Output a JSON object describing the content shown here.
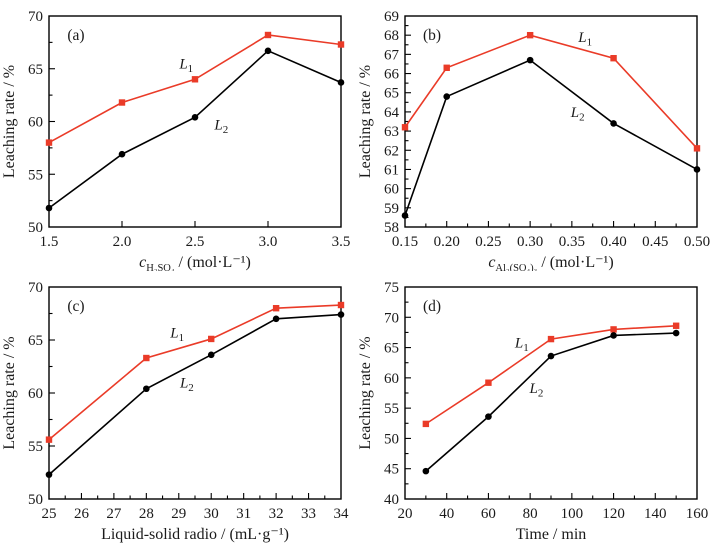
{
  "figure": {
    "background": "#ffffff",
    "frame_color": "#000000",
    "ylabel": "Leaching rate / %"
  },
  "chart_data": [
    {
      "panel_label": "(a)",
      "type": "line",
      "xlabel": {
        "italic": "c",
        "sub": "H₂SO₄",
        "rest": " / (mol·L⁻¹)"
      },
      "ylabel": "Leaching rate / %",
      "xlim": [
        1.5,
        3.5
      ],
      "ylim": [
        50,
        70
      ],
      "xticks": [
        1.5,
        2.0,
        2.5,
        3.0,
        3.5
      ],
      "xtick_labels": [
        "1.5",
        "2.0",
        "2.5",
        "3.0",
        "3.5"
      ],
      "yticks": [
        50,
        55,
        60,
        65,
        70
      ],
      "ytick_labels": [
        "50",
        "55",
        "60",
        "65",
        "70"
      ],
      "x_minor_step": 0,
      "y_minor_step": 2.5,
      "x": [
        1.5,
        2.0,
        2.5,
        3.0,
        3.5
      ],
      "grid": false,
      "legend_position": "inline-labels",
      "series": [
        {
          "name": "L",
          "subscript": "1",
          "marker": "square",
          "color": "#ea3b28",
          "values": [
            58.0,
            61.8,
            64.0,
            68.2,
            67.3
          ],
          "label_x": 2.44,
          "label_y": 65.5
        },
        {
          "name": "L",
          "subscript": "2",
          "marker": "circle",
          "color": "#000000",
          "values": [
            51.8,
            56.9,
            60.4,
            66.7,
            63.7
          ],
          "label_x": 2.68,
          "label_y": 59.7
        }
      ]
    },
    {
      "panel_label": "(b)",
      "type": "line",
      "xlabel": {
        "italic": "c",
        "sub": "Al₂(SO₄)₃",
        "rest": " / (mol·L⁻¹)"
      },
      "ylabel": "Leaching rate / %",
      "xlim": [
        0.15,
        0.5
      ],
      "ylim": [
        58,
        69
      ],
      "xticks": [
        0.15,
        0.2,
        0.25,
        0.3,
        0.35,
        0.4,
        0.45,
        0.5
      ],
      "xtick_labels": [
        "0.15",
        "0.20",
        "0.25",
        "0.30",
        "0.35",
        "0.40",
        "0.45",
        "0.50"
      ],
      "yticks": [
        58,
        59,
        60,
        61,
        62,
        63,
        64,
        65,
        66,
        67,
        68,
        69
      ],
      "ytick_labels": [
        "58",
        "59",
        "60",
        "61",
        "62",
        "63",
        "64",
        "65",
        "66",
        "67",
        "68",
        "69"
      ],
      "x_minor_step": 0.025,
      "y_minor_step": 0.5,
      "x": [
        0.15,
        0.2,
        0.3,
        0.4,
        0.5
      ],
      "grid": false,
      "legend_position": "inline-labels",
      "series": [
        {
          "name": "L",
          "subscript": "1",
          "marker": "square",
          "color": "#ea3b28",
          "values": [
            63.2,
            66.3,
            68.0,
            66.8,
            62.1
          ],
          "label_x": 0.366,
          "label_y": 67.9
        },
        {
          "name": "L",
          "subscript": "2",
          "marker": "circle",
          "color": "#000000",
          "values": [
            58.6,
            64.8,
            66.7,
            63.4,
            61.0
          ],
          "label_x": 0.357,
          "label_y": 64.0
        }
      ]
    },
    {
      "panel_label": "(c)",
      "type": "line",
      "xlabel": {
        "italic": "",
        "sub": "",
        "rest": "Liquid-solid radio / (mL·g⁻¹)"
      },
      "ylabel": "Leaching rate / %",
      "xlim": [
        25,
        34
      ],
      "ylim": [
        50,
        70
      ],
      "xticks": [
        25,
        26,
        27,
        28,
        29,
        30,
        31,
        32,
        33,
        34
      ],
      "xtick_labels": [
        "25",
        "26",
        "27",
        "28",
        "29",
        "30",
        "31",
        "32",
        "33",
        "34"
      ],
      "yticks": [
        50,
        55,
        60,
        65,
        70
      ],
      "ytick_labels": [
        "50",
        "55",
        "60",
        "65",
        "70"
      ],
      "x_minor_step": 0.5,
      "y_minor_step": 2.5,
      "x": [
        25,
        28,
        30,
        32,
        34
      ],
      "grid": false,
      "legend_position": "inline-labels",
      "series": [
        {
          "name": "L",
          "subscript": "1",
          "marker": "square",
          "color": "#ea3b28",
          "values": [
            55.6,
            63.3,
            65.1,
            68.0,
            68.3
          ],
          "label_x": 28.95,
          "label_y": 65.7
        },
        {
          "name": "L",
          "subscript": "2",
          "marker": "circle",
          "color": "#000000",
          "values": [
            52.3,
            60.4,
            63.6,
            67.0,
            67.4
          ],
          "label_x": 29.25,
          "label_y": 61.0
        }
      ]
    },
    {
      "panel_label": "(d)",
      "type": "line",
      "xlabel": {
        "italic": "",
        "sub": "",
        "rest": "Time / min"
      },
      "ylabel": "Leaching rate / %",
      "xlim": [
        20,
        160
      ],
      "ylim": [
        40,
        75
      ],
      "xticks": [
        20,
        40,
        60,
        80,
        100,
        120,
        140,
        160
      ],
      "xtick_labels": [
        "20",
        "40",
        "60",
        "80",
        "100",
        "120",
        "140",
        "160"
      ],
      "yticks": [
        40,
        45,
        50,
        55,
        60,
        65,
        70,
        75
      ],
      "ytick_labels": [
        "40",
        "45",
        "50",
        "55",
        "60",
        "65",
        "70",
        "75"
      ],
      "x_minor_step": 10,
      "y_minor_step": 2.5,
      "x": [
        30,
        60,
        90,
        120,
        150
      ],
      "grid": false,
      "legend_position": "inline-labels",
      "series": [
        {
          "name": "L",
          "subscript": "1",
          "marker": "square",
          "color": "#ea3b28",
          "values": [
            52.4,
            59.2,
            66.4,
            68.0,
            68.6
          ],
          "label_x": 76,
          "label_y": 65.8
        },
        {
          "name": "L",
          "subscript": "2",
          "marker": "circle",
          "color": "#000000",
          "values": [
            44.6,
            53.6,
            63.6,
            67.0,
            67.4
          ],
          "label_x": 83,
          "label_y": 58.3
        }
      ]
    }
  ]
}
